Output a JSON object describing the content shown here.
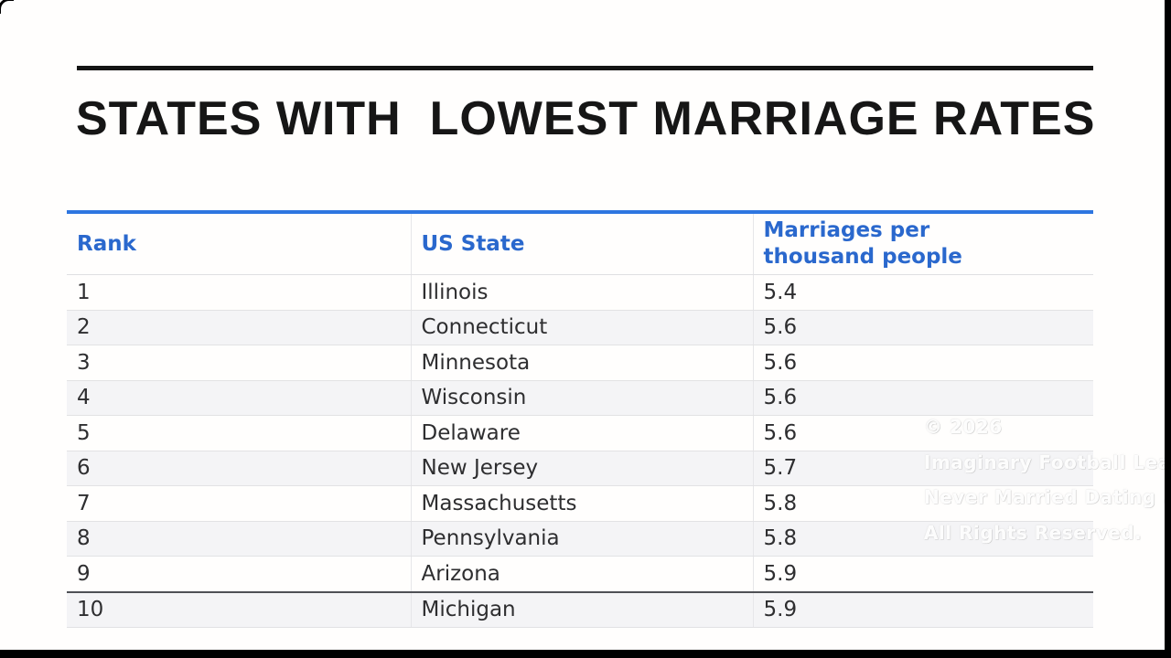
{
  "page": {
    "title": "STATES WITH  LOWEST MARRIAGE RATES"
  },
  "table": {
    "headers": [
      "Rank",
      "US State",
      "Marriages per thousand people"
    ],
    "rows": [
      {
        "rank": "1",
        "state": "Illinois",
        "rate": "5.4"
      },
      {
        "rank": "2",
        "state": "Connecticut",
        "rate": "5.6"
      },
      {
        "rank": "3",
        "state": "Minnesota",
        "rate": "5.6"
      },
      {
        "rank": "4",
        "state": "Wisconsin",
        "rate": "5.6"
      },
      {
        "rank": "5",
        "state": "Delaware",
        "rate": "5.6"
      },
      {
        "rank": "6",
        "state": "New Jersey",
        "rate": "5.7"
      },
      {
        "rank": "7",
        "state": "Massachusetts",
        "rate": "5.8"
      },
      {
        "rank": "8",
        "state": "Pennsylvania",
        "rate": "5.8"
      },
      {
        "rank": "9",
        "state": "Arizona",
        "rate": "5.9"
      },
      {
        "rank": "10",
        "state": "Michigan",
        "rate": "5.9"
      }
    ]
  },
  "watermark": {
    "lines": [
      "© 2026",
      "Imaginary Football League",
      "Never Married Dating . Com",
      "All Rights Reserved."
    ]
  },
  "colors": {
    "accent_blue_text": "#2a68cd",
    "table_top_border": "#2e76e0",
    "row_alt_background": "#f4f4f6",
    "row_border": "#e2e2e4",
    "dark_row_separator": "#4e5055",
    "title_text": "#161616",
    "letterbox": "#000000"
  },
  "chart_data": {
    "type": "table",
    "title": "STATES WITH LOWEST MARRIAGE RATES",
    "columns": [
      "Rank",
      "US State",
      "Marriages per thousand people"
    ],
    "rows": [
      [
        1,
        "Illinois",
        5.4
      ],
      [
        2,
        "Connecticut",
        5.6
      ],
      [
        3,
        "Minnesota",
        5.6
      ],
      [
        4,
        "Wisconsin",
        5.6
      ],
      [
        5,
        "Delaware",
        5.6
      ],
      [
        6,
        "New Jersey",
        5.7
      ],
      [
        7,
        "Massachusetts",
        5.8
      ],
      [
        8,
        "Pennsylvania",
        5.8
      ],
      [
        9,
        "Arizona",
        5.9
      ],
      [
        10,
        "Michigan",
        5.9
      ]
    ]
  }
}
